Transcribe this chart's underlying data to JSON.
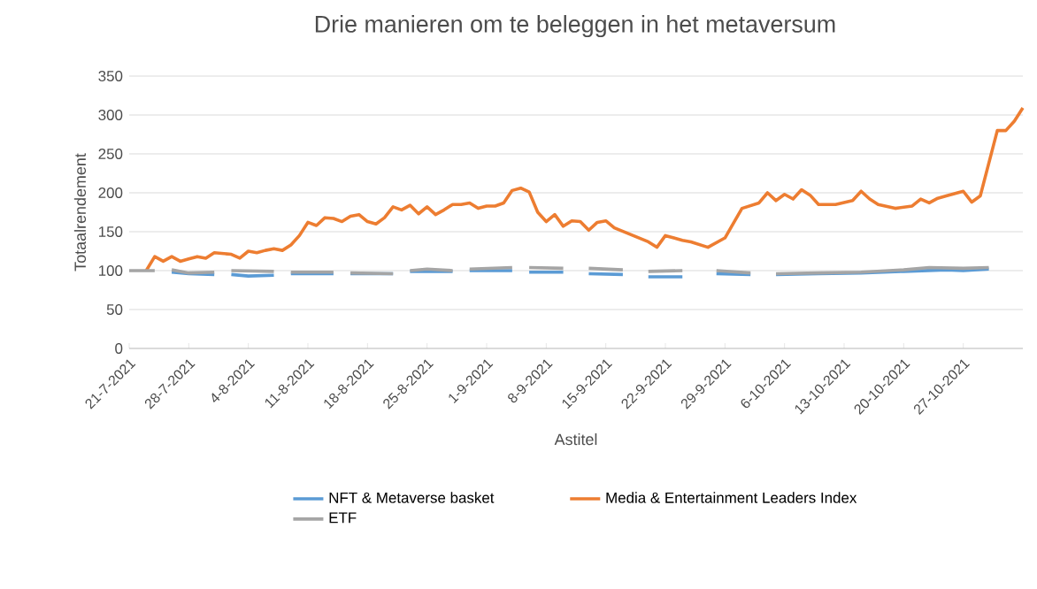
{
  "chart_data": {
    "type": "line",
    "title": "Drie manieren om te beleggen in het metaversum",
    "xlabel": "Astitel",
    "ylabel": "Totaalrendement",
    "xlim": [
      "2021-07-21",
      "2021-11-03"
    ],
    "ylim": [
      0,
      350
    ],
    "yticks": [
      0,
      50,
      100,
      150,
      200,
      250,
      300,
      350
    ],
    "xticks": [
      {
        "value": "2021-07-21",
        "label": "21-7-2021"
      },
      {
        "value": "2021-07-28",
        "label": "28-7-2021"
      },
      {
        "value": "2021-08-04",
        "label": "4-8-2021"
      },
      {
        "value": "2021-08-11",
        "label": "11-8-2021"
      },
      {
        "value": "2021-08-18",
        "label": "18-8-2021"
      },
      {
        "value": "2021-08-25",
        "label": "25-8-2021"
      },
      {
        "value": "2021-09-01",
        "label": "1-9-2021"
      },
      {
        "value": "2021-09-08",
        "label": "8-9-2021"
      },
      {
        "value": "2021-09-15",
        "label": "15-9-2021"
      },
      {
        "value": "2021-09-22",
        "label": "22-9-2021"
      },
      {
        "value": "2021-09-29",
        "label": "29-9-2021"
      },
      {
        "value": "2021-10-06",
        "label": "6-10-2021"
      },
      {
        "value": "2021-10-13",
        "label": "13-10-2021"
      },
      {
        "value": "2021-10-20",
        "label": "20-10-2021"
      },
      {
        "value": "2021-10-27",
        "label": "27-10-2021"
      }
    ],
    "grid": "y",
    "legend": "bottom",
    "marker": "none",
    "line_style": "solid",
    "series": [
      {
        "name": "NFT & Metaverse basket",
        "color": "#5b9bd5",
        "x": [
          "2021-07-26",
          "2021-07-28",
          "2021-07-31",
          "2021-08-01",
          "2021-08-02",
          "2021-08-04",
          "2021-08-07",
          "2021-08-08",
          "2021-08-09",
          "2021-08-14",
          "2021-08-15",
          "2021-08-16",
          "2021-08-21",
          "2021-08-22",
          "2021-08-23",
          "2021-08-28",
          "2021-08-29",
          "2021-08-30",
          "2021-09-04",
          "2021-09-05",
          "2021-09-06",
          "2021-09-10",
          "2021-09-11",
          "2021-09-13",
          "2021-09-17",
          "2021-09-18",
          "2021-09-20",
          "2021-09-24",
          "2021-09-25",
          "2021-09-28",
          "2021-10-02",
          "2021-10-03",
          "2021-10-05",
          "2021-10-10",
          "2021-10-15",
          "2021-10-20",
          "2021-10-25",
          "2021-10-27",
          "2021-10-30"
        ],
        "values": [
          98,
          96,
          95,
          null,
          95,
          93,
          94,
          null,
          96,
          96,
          null,
          96,
          96,
          null,
          99,
          99,
          null,
          100,
          100,
          null,
          98,
          98,
          null,
          96,
          95,
          null,
          92,
          92,
          null,
          96,
          95,
          null,
          95,
          96,
          97,
          99,
          101,
          100,
          102
        ]
      },
      {
        "name": "Media & Entertainment Leaders Index",
        "color": "#ed7d31",
        "x": [
          "2021-07-23",
          "2021-07-24",
          "2021-07-25",
          "2021-07-26",
          "2021-07-27",
          "2021-07-28",
          "2021-07-29",
          "2021-07-30",
          "2021-07-31",
          "2021-08-02",
          "2021-08-03",
          "2021-08-04",
          "2021-08-05",
          "2021-08-06",
          "2021-08-07",
          "2021-08-08",
          "2021-08-09",
          "2021-08-10",
          "2021-08-11",
          "2021-08-12",
          "2021-08-13",
          "2021-08-14",
          "2021-08-15",
          "2021-08-16",
          "2021-08-17",
          "2021-08-18",
          "2021-08-19",
          "2021-08-20",
          "2021-08-21",
          "2021-08-22",
          "2021-08-23",
          "2021-08-24",
          "2021-08-25",
          "2021-08-26",
          "2021-08-27",
          "2021-08-28",
          "2021-08-29",
          "2021-08-30",
          "2021-08-31",
          "2021-09-01",
          "2021-09-02",
          "2021-09-03",
          "2021-09-04",
          "2021-09-05",
          "2021-09-06",
          "2021-09-07",
          "2021-09-08",
          "2021-09-09",
          "2021-09-10",
          "2021-09-11",
          "2021-09-12",
          "2021-09-13",
          "2021-09-14",
          "2021-09-15",
          "2021-09-16",
          "2021-09-20",
          "2021-09-21",
          "2021-09-22",
          "2021-09-24",
          "2021-09-25",
          "2021-09-27",
          "2021-09-29",
          "2021-10-01",
          "2021-10-03",
          "2021-10-04",
          "2021-10-05",
          "2021-10-06",
          "2021-10-07",
          "2021-10-08",
          "2021-10-09",
          "2021-10-10",
          "2021-10-12",
          "2021-10-14",
          "2021-10-15",
          "2021-10-16",
          "2021-10-17",
          "2021-10-19",
          "2021-10-21",
          "2021-10-22",
          "2021-10-23",
          "2021-10-24",
          "2021-10-25",
          "2021-10-27",
          "2021-10-28",
          "2021-10-29",
          "2021-10-31",
          "2021-11-01",
          "2021-11-02",
          "2021-11-03"
        ],
        "values": [
          100,
          118,
          112,
          118,
          112,
          115,
          118,
          116,
          123,
          121,
          116,
          125,
          123,
          126,
          128,
          126,
          133,
          145,
          162,
          158,
          168,
          167,
          163,
          170,
          172,
          163,
          160,
          168,
          182,
          178,
          184,
          173,
          182,
          172,
          178,
          185,
          185,
          187,
          180,
          183,
          183,
          187,
          203,
          206,
          201,
          175,
          163,
          172,
          157,
          164,
          163,
          152,
          162,
          164,
          155,
          137,
          130,
          145,
          139,
          137,
          130,
          142,
          180,
          187,
          200,
          190,
          198,
          192,
          204,
          197,
          185,
          185,
          190,
          202,
          192,
          185,
          180,
          183,
          192,
          187,
          193,
          196,
          202,
          188,
          196,
          280,
          280,
          292,
          309
        ]
      },
      {
        "name": "ETF",
        "color": "#a5a5a5",
        "x": [
          "2021-07-21",
          "2021-07-24",
          "2021-07-25",
          "2021-07-26",
          "2021-07-28",
          "2021-07-31",
          "2021-08-01",
          "2021-08-02",
          "2021-08-07",
          "2021-08-08",
          "2021-08-09",
          "2021-08-14",
          "2021-08-15",
          "2021-08-16",
          "2021-08-21",
          "2021-08-22",
          "2021-08-23",
          "2021-08-25",
          "2021-08-28",
          "2021-08-29",
          "2021-08-30",
          "2021-09-04",
          "2021-09-05",
          "2021-09-06",
          "2021-09-10",
          "2021-09-11",
          "2021-09-13",
          "2021-09-17",
          "2021-09-18",
          "2021-09-20",
          "2021-09-24",
          "2021-09-25",
          "2021-09-28",
          "2021-10-02",
          "2021-10-03",
          "2021-10-05",
          "2021-10-10",
          "2021-10-15",
          "2021-10-20",
          "2021-10-23",
          "2021-10-27",
          "2021-10-30"
        ],
        "values": [
          100,
          100,
          null,
          101,
          97,
          98,
          null,
          100,
          99,
          null,
          98,
          98,
          null,
          97,
          96,
          null,
          100,
          102,
          100,
          null,
          102,
          104,
          null,
          104,
          103,
          null,
          103,
          101,
          null,
          99,
          100,
          null,
          100,
          97,
          null,
          96,
          97,
          98,
          101,
          104,
          103,
          104
        ]
      }
    ]
  }
}
